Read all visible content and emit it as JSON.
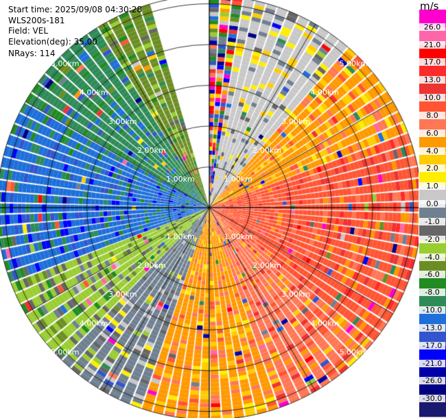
{
  "info": {
    "start_time": "Start time: 2025/09/08 04:30:28",
    "site": "WLS200s-181",
    "field": "Field: VEL",
    "elevation": "Elevation(deg): 35.00",
    "nrays": "NRays: 114"
  },
  "colorbar": {
    "unit": "m/s",
    "labels": [
      "26.0",
      "21.0",
      "17.0",
      "13.0",
      "10.0",
      "8.0",
      "6.0",
      "4.0",
      "2.0",
      "1.0",
      "0.0",
      "-1.0",
      "-2.0",
      "-4.0",
      "-6.0",
      "-8.0",
      "-10.0",
      "-13.0",
      "-17.0",
      "-21.0",
      "-26.0",
      "-30.0"
    ],
    "colors": [
      "#ff00cc",
      "#ff66aa",
      "#ff0000",
      "#ff2a2a",
      "#ee3333",
      "#ff5533",
      "#ff7755",
      "#ff9900",
      "#ffcc00",
      "#ffee00",
      "#c8c8c8",
      "#708090",
      "#666666",
      "#9acd32",
      "#6b8e23",
      "#228b22",
      "#2e8b57",
      "#1e6fd9",
      "#3355cc",
      "#0000ff",
      "#0000aa",
      "#000080",
      "#191970"
    ]
  },
  "chart_data": {
    "type": "heatmap",
    "projection": "polar-ppi",
    "field": "VEL",
    "elevation_deg": 35.0,
    "n_rays": 114,
    "range_rings_km": [
      1.0,
      2.0,
      3.0,
      4.0,
      5.0
    ],
    "ring_labels": [
      "1.00km",
      "2.00km",
      "3.00km",
      "4.00km",
      "5.00km"
    ],
    "max_range_km": 5.2,
    "grid": true,
    "spokes_deg": [
      0,
      30,
      60,
      90,
      120,
      150,
      180,
      210,
      240,
      270,
      300,
      330
    ],
    "sectors": [
      {
        "az_from": 0,
        "az_to": 10,
        "dominant_value": 1.0,
        "noisy": true
      },
      {
        "az_from": 10,
        "az_to": 40,
        "dominant_value": 0.0
      },
      {
        "az_from": 40,
        "az_to": 70,
        "dominant_value": 4.0
      },
      {
        "az_from": 70,
        "az_to": 130,
        "dominant_value": 8.0
      },
      {
        "az_from": 130,
        "az_to": 160,
        "dominant_value": 6.0
      },
      {
        "az_from": 160,
        "az_to": 200,
        "dominant_value": 4.0
      },
      {
        "az_from": 200,
        "az_to": 225,
        "dominant_value": -1.0
      },
      {
        "az_from": 225,
        "az_to": 250,
        "dominant_value": -4.0
      },
      {
        "az_from": 250,
        "az_to": 300,
        "dominant_value": -13.0
      },
      {
        "az_from": 300,
        "az_to": 330,
        "dominant_value": -10.0
      },
      {
        "az_from": 330,
        "az_to": 345,
        "dominant_value": -6.0
      },
      {
        "az_from": 345,
        "az_to": 360,
        "dominant_value": null
      }
    ]
  }
}
